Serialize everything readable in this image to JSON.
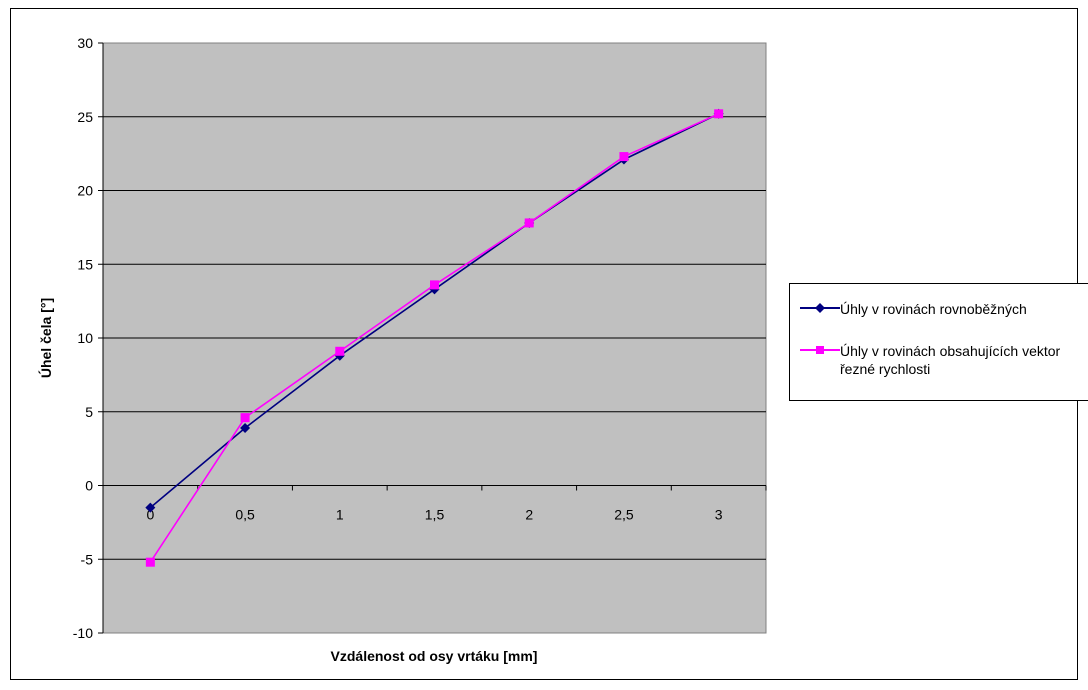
{
  "chart_data": {
    "type": "line",
    "xlabel": "Vzdálenost od osy vrtáku [mm]",
    "ylabel": "Úhel čela [°]",
    "x": [
      0,
      0.5,
      1,
      1.5,
      2,
      2.5,
      3
    ],
    "x_tick_labels": [
      "0",
      "0,5",
      "1",
      "1,5",
      "2",
      "2,5",
      "3"
    ],
    "ylim": [
      -10,
      30
    ],
    "y_ticks": [
      -10,
      -5,
      0,
      5,
      10,
      15,
      20,
      25,
      30
    ],
    "grid": true,
    "plot_background": "#c0c0c0",
    "legend_position": "right",
    "series": [
      {
        "name": "Úhly v rovinách rovnoběžných",
        "values": [
          -1.5,
          3.9,
          8.8,
          13.3,
          17.8,
          22.1,
          25.2
        ],
        "color": "#000080",
        "marker": "diamond"
      },
      {
        "name": "Úhly v rovinách obsahujících vektor řezné rychlosti",
        "values": [
          -5.2,
          4.6,
          9.1,
          13.6,
          17.8,
          22.3,
          25.2
        ],
        "color": "#ff00ff",
        "marker": "square"
      }
    ]
  }
}
